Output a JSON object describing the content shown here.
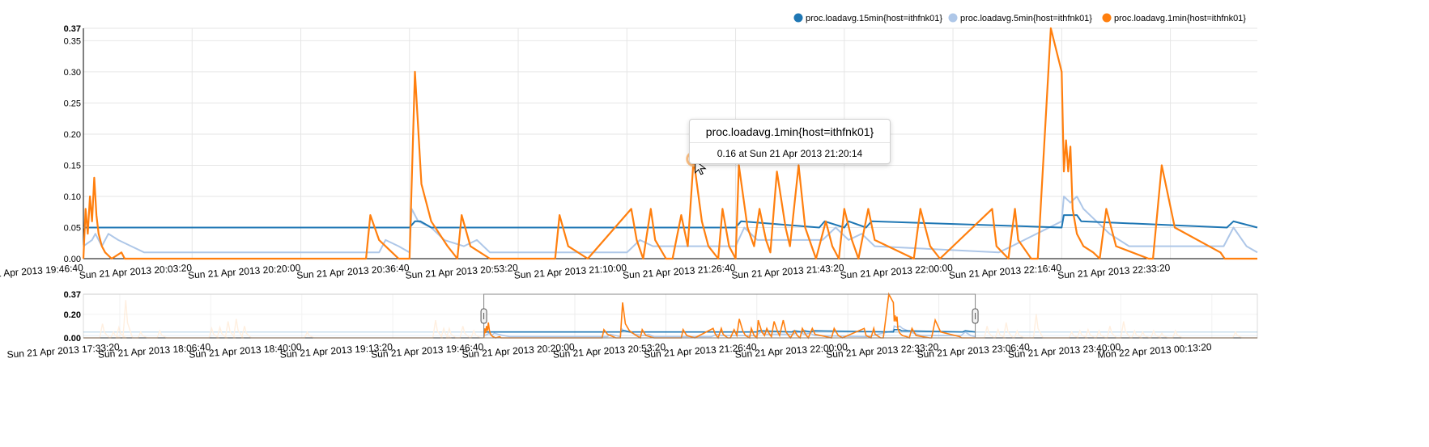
{
  "colors": {
    "series_15min": "#1f77b4",
    "series_5min": "#aec7e8",
    "series_1min": "#ff7f0e"
  },
  "chart_data": [
    {
      "type": "line",
      "title": "",
      "xlabel": "",
      "ylabel": "",
      "ylim": [
        0,
        0.37
      ],
      "grid": true,
      "legend_position": "top-right",
      "y_ticks": [
        "0.00",
        "0.05",
        "0.10",
        "0.15",
        "0.20",
        "0.25",
        "0.30",
        "0.35",
        "0.37"
      ],
      "x_range": [
        "2013-04-21 19:46:40",
        "2013-04-21 22:46:40"
      ],
      "x_ticks": [
        "Sun 21 Apr 2013 19:46:40",
        "Sun 21 Apr 2013 20:03:20",
        "Sun 21 Apr 2013 20:20:00",
        "Sun 21 Apr 2013 20:36:40",
        "Sun 21 Apr 2013 20:53:20",
        "Sun 21 Apr 2013 21:10:00",
        "Sun 21 Apr 2013 21:26:40",
        "Sun 21 Apr 2013 21:43:20",
        "Sun 21 Apr 2013 22:00:00",
        "Sun 21 Apr 2013 22:16:40",
        "Sun 21 Apr 2013 22:33:20"
      ],
      "legend": [
        "proc.loadavg.15min{host=ithfnk01}",
        "proc.loadavg.5min{host=ithfnk01}",
        "proc.loadavg.1min{host=ithfnk01}"
      ],
      "series": [
        {
          "name": "proc.loadavg.15min{host=ithfnk01}",
          "x": [
            "19:46:40",
            "20:21:00",
            "20:36:40",
            "20:37:30",
            "20:38:20",
            "20:40:00",
            "20:41:00",
            "21:26:40",
            "21:27:30",
            "21:39:30",
            "21:40:20",
            "21:43:20",
            "21:44:00",
            "21:46:40",
            "21:47:30",
            "22:16:40",
            "22:17:00",
            "22:19:00",
            "22:19:40",
            "22:42:00",
            "22:43:00",
            "22:46:40"
          ],
          "values": [
            0.05,
            0.05,
            0.05,
            0.06,
            0.06,
            0.05,
            0.05,
            0.05,
            0.06,
            0.05,
            0.06,
            0.05,
            0.06,
            0.05,
            0.06,
            0.05,
            0.07,
            0.07,
            0.06,
            0.05,
            0.06,
            0.05
          ]
        },
        {
          "name": "proc.loadavg.5min{host=ithfnk01}",
          "x": [
            "19:46:40",
            "19:48:00",
            "19:48:30",
            "19:49:30",
            "19:50:30",
            "19:52:00",
            "19:54:00",
            "19:56:00",
            "20:32:00",
            "20:33:00",
            "20:35:00",
            "20:36:40",
            "20:37:00",
            "20:38:00",
            "20:40:00",
            "20:42:00",
            "20:45:00",
            "20:47:00",
            "20:49:00",
            "21:10:00",
            "21:12:00",
            "21:14:00",
            "21:26:40",
            "21:28:00",
            "21:30:00",
            "21:40:00",
            "21:42:00",
            "21:44:00",
            "21:46:00",
            "21:48:00",
            "22:07:00",
            "22:09:00",
            "22:16:40",
            "22:17:00",
            "22:18:00",
            "22:19:00",
            "22:20:00",
            "22:22:00",
            "22:24:00",
            "22:27:00",
            "22:41:30",
            "22:43:00",
            "22:45:00",
            "22:46:40"
          ],
          "values": [
            0.02,
            0.03,
            0.04,
            0.02,
            0.04,
            0.03,
            0.02,
            0.01,
            0.01,
            0.03,
            0.02,
            0.01,
            0.08,
            0.06,
            0.05,
            0.03,
            0.02,
            0.03,
            0.01,
            0.01,
            0.03,
            0.02,
            0.02,
            0.05,
            0.03,
            0.03,
            0.05,
            0.03,
            0.04,
            0.02,
            0.01,
            0.02,
            0.06,
            0.1,
            0.09,
            0.1,
            0.08,
            0.06,
            0.04,
            0.02,
            0.02,
            0.05,
            0.02,
            0.01
          ]
        },
        {
          "name": "proc.loadavg.1min{host=ithfnk01}",
          "x": [
            "19:46:40",
            "19:47:00",
            "19:47:20",
            "19:47:40",
            "19:48:00",
            "19:48:20",
            "19:48:40",
            "19:49:00",
            "19:49:30",
            "19:50:00",
            "19:51:00",
            "19:52:30",
            "19:53:00",
            "20:30:00",
            "20:30:40",
            "20:32:00",
            "20:34:00",
            "20:35:00",
            "20:36:00",
            "20:36:40",
            "20:37:30",
            "20:38:30",
            "20:40:00",
            "20:42:30",
            "20:44:00",
            "20:44:40",
            "20:46:00",
            "20:49:00",
            "20:59:00",
            "20:59:40",
            "21:01:00",
            "21:04:00",
            "21:10:40",
            "21:11:30",
            "21:12:30",
            "21:13:40",
            "21:14:20",
            "21:16:00",
            "21:17:00",
            "21:18:20",
            "21:19:20",
            "21:20:14",
            "21:21:30",
            "21:22:30",
            "21:24:00",
            "21:24:40",
            "21:25:40",
            "21:26:40",
            "21:27:10",
            "21:28:30",
            "21:29:30",
            "21:30:20",
            "21:31:20",
            "21:32:00",
            "21:33:00",
            "21:34:20",
            "21:35:00",
            "21:36:20",
            "21:37:20",
            "21:38:20",
            "21:39:00",
            "21:40:30",
            "21:41:30",
            "21:42:30",
            "21:43:20",
            "21:44:30",
            "21:45:30",
            "21:47:00",
            "21:48:00",
            "21:54:00",
            "21:55:00",
            "21:56:30",
            "21:58:00",
            "22:06:00",
            "22:06:40",
            "22:08:30",
            "22:09:30",
            "22:10:00",
            "22:12:00",
            "22:13:00",
            "22:15:00",
            "22:16:40",
            "22:17:00",
            "22:17:20",
            "22:17:40",
            "22:18:00",
            "22:18:20",
            "22:19:00",
            "22:20:00",
            "22:21:30",
            "22:22:30",
            "22:23:30",
            "22:25:00",
            "22:30:00",
            "22:30:40",
            "22:32:00",
            "22:34:00",
            "22:41:00",
            "22:41:40",
            "22:43:00",
            "22:45:00",
            "22:46:40"
          ],
          "values": [
            0.0,
            0.08,
            0.04,
            0.1,
            0.06,
            0.13,
            0.07,
            0.04,
            0.02,
            0.01,
            0.0,
            0.01,
            0.0,
            0.0,
            0.07,
            0.03,
            0.01,
            0.0,
            0.0,
            0.0,
            0.3,
            0.12,
            0.06,
            0.02,
            0.0,
            0.07,
            0.02,
            0.0,
            0.0,
            0.07,
            0.02,
            0.0,
            0.08,
            0.03,
            0.0,
            0.08,
            0.03,
            0.0,
            0.0,
            0.07,
            0.02,
            0.16,
            0.06,
            0.02,
            0.0,
            0.08,
            0.02,
            0.0,
            0.15,
            0.05,
            0.02,
            0.08,
            0.03,
            0.01,
            0.14,
            0.05,
            0.02,
            0.15,
            0.05,
            0.02,
            0.0,
            0.06,
            0.02,
            0.0,
            0.08,
            0.03,
            0.0,
            0.08,
            0.03,
            0.0,
            0.08,
            0.02,
            0.0,
            0.08,
            0.02,
            0.0,
            0.08,
            0.03,
            0.0,
            0.0,
            0.37,
            0.3,
            0.14,
            0.19,
            0.14,
            0.18,
            0.08,
            0.04,
            0.02,
            0.01,
            0.0,
            0.08,
            0.02,
            0.0,
            0.0,
            0.15,
            0.05,
            0.01,
            0.0,
            0.0,
            0.0,
            0.0
          ]
        }
      ]
    },
    {
      "type": "line",
      "title": "",
      "xlabel": "",
      "ylabel": "",
      "ylim": [
        0,
        0.37
      ],
      "y_ticks": [
        "0.00",
        "0.20",
        "0.37"
      ],
      "x_range": [
        "2013-04-21 17:20:00",
        "2013-04-22 00:30:00"
      ],
      "selected_range": [
        "2013-04-21 19:46:40",
        "2013-04-21 22:46:40"
      ],
      "x_ticks": [
        "Sun 21 Apr 2013 17:33:20",
        "Sun 21 Apr 2013 18:06:40",
        "Sun 21 Apr 2013 18:40:00",
        "Sun 21 Apr 2013 19:13:20",
        "Sun 21 Apr 2013 19:46:40",
        "Sun 21 Apr 2013 20:20:00",
        "Sun 21 Apr 2013 20:53:20",
        "Sun 21 Apr 2013 21:26:40",
        "Sun 21 Apr 2013 22:00:00",
        "Sun 21 Apr 2013 22:33:20",
        "Sun 21 Apr 2013 23:06:40",
        "Sun 21 Apr 2013 23:40:00",
        "Mon 22 Apr 2013 00:13:20"
      ],
      "extra_1min_spikes": [
        {
          "at": "17:27:00",
          "v": 0.12
        },
        {
          "at": "17:31:00",
          "v": 0.05
        },
        {
          "at": "17:33:00",
          "v": 0.09
        },
        {
          "at": "17:35:30",
          "v": 0.32
        },
        {
          "at": "17:41:00",
          "v": 0.05
        },
        {
          "at": "17:48:00",
          "v": 0.06
        },
        {
          "at": "18:07:00",
          "v": 0.08
        },
        {
          "at": "18:10:00",
          "v": 0.09
        },
        {
          "at": "18:13:00",
          "v": 0.14
        },
        {
          "at": "18:16:00",
          "v": 0.16
        },
        {
          "at": "18:19:00",
          "v": 0.1
        },
        {
          "at": "18:42:00",
          "v": 0.05
        },
        {
          "at": "19:29:00",
          "v": 0.15
        },
        {
          "at": "19:32:00",
          "v": 0.08
        },
        {
          "at": "19:34:00",
          "v": 0.08
        },
        {
          "at": "19:39:00",
          "v": 0.1
        },
        {
          "at": "19:43:00",
          "v": 0.06
        },
        {
          "at": "22:51:00",
          "v": 0.1
        },
        {
          "at": "22:55:00",
          "v": 0.07
        },
        {
          "at": "22:58:00",
          "v": 0.13
        },
        {
          "at": "23:02:00",
          "v": 0.06
        },
        {
          "at": "23:09:00",
          "v": 0.2
        },
        {
          "at": "23:22:00",
          "v": 0.05
        },
        {
          "at": "23:25:00",
          "v": 0.06
        },
        {
          "at": "23:28:00",
          "v": 0.07
        },
        {
          "at": "23:32:00",
          "v": 0.06
        },
        {
          "at": "23:36:00",
          "v": 0.1
        },
        {
          "at": "23:41:00",
          "v": 0.14
        },
        {
          "at": "23:45:00",
          "v": 0.06
        },
        {
          "at": "23:48:00",
          "v": 0.05
        },
        {
          "at": "23:52:00",
          "v": 0.06
        },
        {
          "at": "23:55:00",
          "v": 0.04
        },
        {
          "at": "00:00:00",
          "v": 0.06
        },
        {
          "at": "00:22:00",
          "v": 0.05
        }
      ]
    }
  ],
  "tooltip": {
    "title": "proc.loadavg.1min{host=ithfnk01}",
    "body": "0.16 at Sun 21 Apr 2013 21:20:14",
    "x": "21:20:14",
    "value": 0.16
  }
}
